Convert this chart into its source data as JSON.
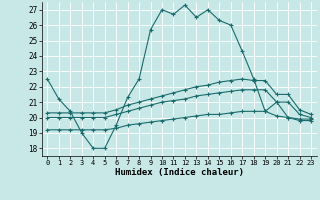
{
  "xlabel": "Humidex (Indice chaleur)",
  "ylabel": "",
  "xlim": [
    -0.5,
    23.5
  ],
  "ylim": [
    17.5,
    27.5
  ],
  "yticks": [
    18,
    19,
    20,
    21,
    22,
    23,
    24,
    25,
    26,
    27
  ],
  "xticks": [
    0,
    1,
    2,
    3,
    4,
    5,
    6,
    7,
    8,
    9,
    10,
    11,
    12,
    13,
    14,
    15,
    16,
    17,
    18,
    19,
    20,
    21,
    22,
    23
  ],
  "background_color": "#c8e8e8",
  "grid_color": "#ffffff",
  "line_color": "#1a6b6b",
  "lines": [
    {
      "x": [
        0,
        1,
        2,
        3,
        4,
        5,
        6,
        7,
        8,
        9,
        10,
        11,
        12,
        13,
        14,
        15,
        16,
        17,
        18,
        19,
        20,
        21,
        22,
        23
      ],
      "y": [
        22.5,
        21.2,
        20.4,
        19.0,
        18.0,
        18.0,
        19.5,
        21.3,
        22.5,
        25.7,
        27.0,
        26.7,
        27.3,
        26.5,
        27.0,
        26.3,
        26.0,
        24.3,
        22.5,
        20.4,
        21.0,
        20.0,
        19.8,
        19.8
      ]
    },
    {
      "x": [
        0,
        1,
        2,
        3,
        4,
        5,
        6,
        7,
        8,
        9,
        10,
        11,
        12,
        13,
        14,
        15,
        16,
        17,
        18,
        19,
        20,
        21,
        22,
        23
      ],
      "y": [
        20.3,
        20.3,
        20.3,
        20.3,
        20.3,
        20.3,
        20.5,
        20.8,
        21.0,
        21.2,
        21.4,
        21.6,
        21.8,
        22.0,
        22.1,
        22.3,
        22.4,
        22.5,
        22.4,
        22.4,
        21.5,
        21.5,
        20.5,
        20.2
      ]
    },
    {
      "x": [
        0,
        1,
        2,
        3,
        4,
        5,
        6,
        7,
        8,
        9,
        10,
        11,
        12,
        13,
        14,
        15,
        16,
        17,
        18,
        19,
        20,
        21,
        22,
        23
      ],
      "y": [
        20.0,
        20.0,
        20.0,
        20.0,
        20.0,
        20.0,
        20.2,
        20.4,
        20.6,
        20.8,
        21.0,
        21.1,
        21.2,
        21.4,
        21.5,
        21.6,
        21.7,
        21.8,
        21.8,
        21.8,
        21.0,
        21.0,
        20.2,
        20.0
      ]
    },
    {
      "x": [
        0,
        1,
        2,
        3,
        4,
        5,
        6,
        7,
        8,
        9,
        10,
        11,
        12,
        13,
        14,
        15,
        16,
        17,
        18,
        19,
        20,
        21,
        22,
        23
      ],
      "y": [
        19.2,
        19.2,
        19.2,
        19.2,
        19.2,
        19.2,
        19.3,
        19.5,
        19.6,
        19.7,
        19.8,
        19.9,
        20.0,
        20.1,
        20.2,
        20.2,
        20.3,
        20.4,
        20.4,
        20.4,
        20.1,
        20.0,
        19.9,
        19.9
      ]
    }
  ]
}
